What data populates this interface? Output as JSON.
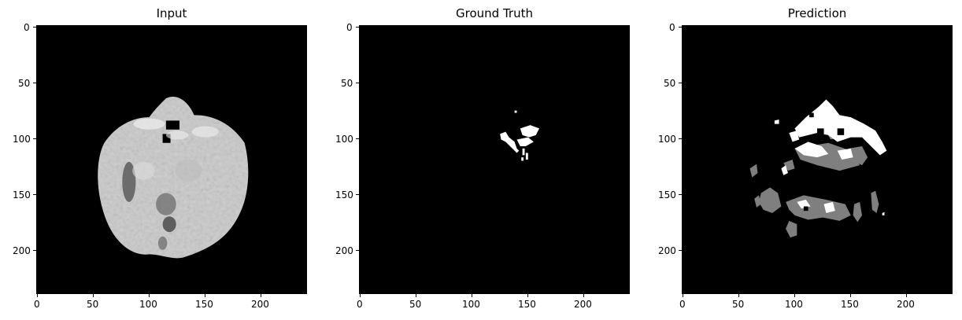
{
  "panels": [
    {
      "title": "Input",
      "image": "axial brain MRI slice, grayscale",
      "x_ticks": [
        "0",
        "50",
        "100",
        "150",
        "200"
      ],
      "y_ticks": [
        "0",
        "50",
        "100",
        "150",
        "200"
      ]
    },
    {
      "title": "Ground Truth",
      "image": "binary segmentation mask, small white region",
      "x_ticks": [
        "0",
        "50",
        "100",
        "150",
        "200"
      ],
      "y_ticks": [
        "0",
        "50",
        "100",
        "150",
        "200"
      ]
    },
    {
      "title": "Prediction",
      "image": "predicted segmentation mask, white and gray regions",
      "x_ticks": [
        "0",
        "50",
        "100",
        "150",
        "200"
      ],
      "y_ticks": [
        "0",
        "50",
        "100",
        "150",
        "200"
      ]
    }
  ],
  "colors": {
    "background": "#000000",
    "mask_white": "#ffffff",
    "mask_gray": "#7f7f7f"
  }
}
